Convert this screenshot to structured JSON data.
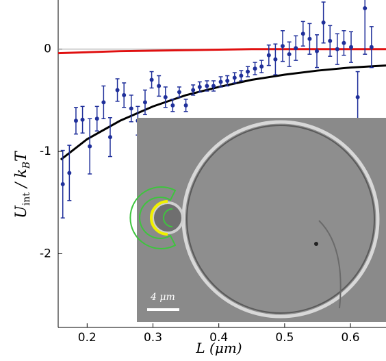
{
  "chart_data": {
    "type": "errorbar",
    "xlabel": "L (μm)",
    "ylabel": [
      "U",
      "int",
      " / k",
      "B",
      "T"
    ],
    "xlim": [
      0.156,
      0.654
    ],
    "ylim": [
      -2.72,
      0.48
    ],
    "xticks": [
      0.2,
      0.3,
      0.4,
      0.5,
      0.6
    ],
    "yticks": [
      -2,
      -1,
      0
    ],
    "zero_line": true,
    "points": {
      "color": "#1f2f9a",
      "x": [
        0.163,
        0.173,
        0.183,
        0.193,
        0.204,
        0.215,
        0.225,
        0.235,
        0.246,
        0.256,
        0.267,
        0.277,
        0.288,
        0.298,
        0.309,
        0.319,
        0.33,
        0.34,
        0.35,
        0.361,
        0.371,
        0.382,
        0.392,
        0.403,
        0.413,
        0.424,
        0.434,
        0.444,
        0.455,
        0.465,
        0.476,
        0.486,
        0.497,
        0.507,
        0.517,
        0.528,
        0.538,
        0.549,
        0.559,
        0.569,
        0.58,
        0.59,
        0.601,
        0.611,
        0.622,
        0.632
      ],
      "values": [
        -1.32,
        -1.21,
        -0.7,
        -0.69,
        -0.95,
        -0.68,
        -0.52,
        -0.86,
        -0.4,
        -0.45,
        -0.58,
        -0.7,
        -0.52,
        -0.3,
        -0.36,
        -0.47,
        -0.55,
        -0.42,
        -0.55,
        -0.4,
        -0.37,
        -0.36,
        -0.36,
        -0.32,
        -0.31,
        -0.28,
        -0.26,
        -0.22,
        -0.19,
        -0.17,
        -0.06,
        -0.1,
        0.03,
        -0.05,
        0.01,
        0.15,
        0.1,
        -0.02,
        0.26,
        0.08,
        0.0,
        0.06,
        0.02,
        -0.47,
        0.4,
        0.02
      ],
      "errors": [
        0.33,
        0.27,
        0.13,
        0.13,
        0.27,
        0.12,
        0.16,
        0.19,
        0.11,
        0.12,
        0.13,
        0.14,
        0.12,
        0.08,
        0.1,
        0.1,
        0.06,
        0.05,
        0.06,
        0.05,
        0.05,
        0.05,
        0.05,
        0.05,
        0.05,
        0.05,
        0.05,
        0.05,
        0.06,
        0.06,
        0.1,
        0.15,
        0.15,
        0.12,
        0.12,
        0.12,
        0.15,
        0.16,
        0.2,
        0.15,
        0.15,
        0.12,
        0.15,
        0.25,
        0.45,
        0.2
      ]
    },
    "curves": [
      {
        "color": "#000000",
        "x": [
          0.16,
          0.2,
          0.25,
          0.3,
          0.35,
          0.4,
          0.45,
          0.5,
          0.55,
          0.6,
          0.654
        ],
        "values": [
          -1.08,
          -0.88,
          -0.7,
          -0.56,
          -0.45,
          -0.37,
          -0.3,
          -0.25,
          -0.21,
          -0.18,
          -0.16
        ]
      },
      {
        "color": "#e01010",
        "x": [
          0.156,
          0.25,
          0.35,
          0.45,
          0.654
        ],
        "values": [
          -0.04,
          -0.02,
          -0.01,
          0,
          0
        ]
      }
    ]
  },
  "inset": {
    "scale_bar": "4 μm"
  }
}
